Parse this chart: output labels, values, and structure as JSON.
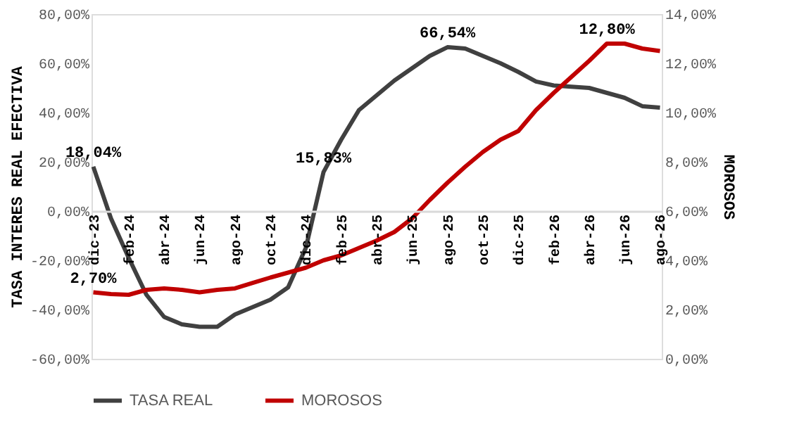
{
  "chart_data": {
    "type": "line",
    "ylabel": "TASA INTERES REAL EFECTIVA",
    "y2label": "MOROSOS",
    "categories": [
      "dic-23",
      null,
      "feb-24",
      null,
      "abr-24",
      null,
      "jun-24",
      null,
      "ago-24",
      null,
      "oct-24",
      null,
      "dic-24",
      null,
      "feb-25",
      null,
      "abr-25",
      null,
      "jun-25",
      null,
      "ago-25",
      null,
      "oct-25",
      null,
      "dic-25",
      null,
      "feb-26",
      null,
      "abr-26",
      null,
      "jun-26",
      null,
      "ago-26"
    ],
    "ylim": [
      -60,
      80
    ],
    "yticks": [
      {
        "value": -60,
        "label": "-60,00%"
      },
      {
        "value": -40,
        "label": "-40,00%"
      },
      {
        "value": -20,
        "label": "-20,00%"
      },
      {
        "value": 0,
        "label": "0,00%"
      },
      {
        "value": 20,
        "label": "20,00%"
      },
      {
        "value": 40,
        "label": "40,00%"
      },
      {
        "value": 60,
        "label": "60,00%"
      },
      {
        "value": 80,
        "label": "80,00%"
      }
    ],
    "y2lim": [
      0,
      14
    ],
    "y2ticks": [
      {
        "value": 0,
        "label": "0,00%"
      },
      {
        "value": 2,
        "label": "2,00%"
      },
      {
        "value": 4,
        "label": "4,00%"
      },
      {
        "value": 6,
        "label": "6,00%"
      },
      {
        "value": 8,
        "label": "8,00%"
      },
      {
        "value": 10,
        "label": "10,00%"
      },
      {
        "value": 12,
        "label": "12,00%"
      },
      {
        "value": 14,
        "label": "14,00%"
      }
    ],
    "series": [
      {
        "name": "TASA REAL",
        "color": "#404040",
        "values": [
          18.04,
          -3,
          -19,
          -34,
          -43,
          -46,
          -47,
          -47,
          -42,
          -39,
          -36,
          -31,
          -15,
          15.83,
          29,
          41,
          47,
          53,
          58,
          63,
          66.54,
          66,
          63,
          60,
          56.5,
          52.6,
          51,
          50.5,
          50,
          48,
          46,
          42.6,
          42
        ],
        "value_labels": [
          "18,04%",
          null,
          null,
          null,
          null,
          null,
          null,
          null,
          null,
          null,
          null,
          null,
          null,
          "15,83%",
          null,
          null,
          null,
          null,
          null,
          null,
          "66,54%",
          null,
          null,
          null,
          null,
          null,
          null,
          null,
          null,
          null,
          null,
          null,
          null
        ]
      },
      {
        "name": "MOROSOS",
        "color": "#c00000",
        "axis": "y2",
        "values": [
          2.7,
          2.63,
          2.6,
          2.8,
          2.86,
          2.8,
          2.7,
          2.8,
          2.86,
          3.08,
          3.3,
          3.5,
          3.7,
          4.0,
          4.2,
          4.5,
          4.8,
          5.15,
          5.7,
          6.45,
          7.15,
          7.8,
          8.4,
          8.9,
          9.25,
          10.1,
          10.8,
          11.45,
          12.1,
          12.8,
          12.8,
          12.6,
          12.5
        ],
        "value_labels": [
          "2,70%",
          null,
          null,
          null,
          null,
          null,
          null,
          null,
          null,
          null,
          null,
          null,
          null,
          null,
          null,
          null,
          null,
          null,
          null,
          null,
          null,
          null,
          null,
          null,
          null,
          null,
          null,
          null,
          null,
          "12,80%",
          null,
          null,
          null
        ]
      }
    ],
    "legend": "bottom",
    "grid": false,
    "marker": "none",
    "line_style": "solid"
  }
}
